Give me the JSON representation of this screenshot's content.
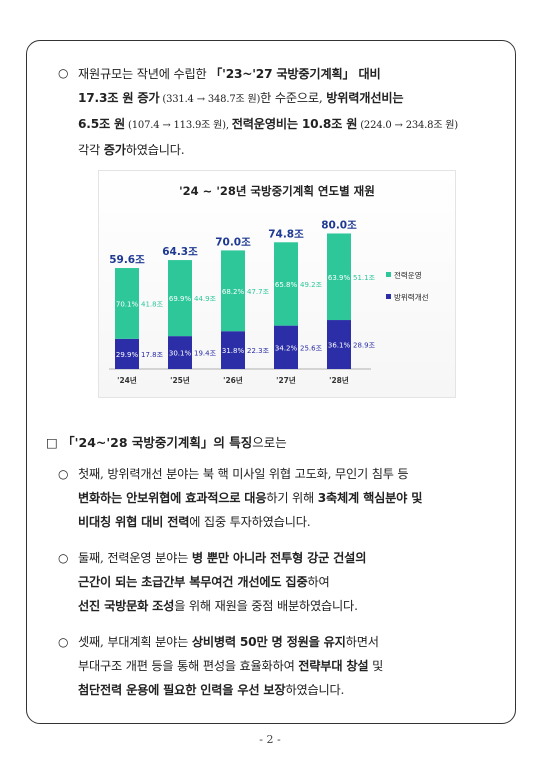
{
  "intro": {
    "bullet": "○",
    "line1_a": "재원규모는 작년에 수립한 ",
    "line1_b": "「'23~'27 국방중기계획」 대비",
    "line2_a": "17.3조 원 증가",
    "line2_b": " (331.4 → 348.7조 원)",
    "line2_c": "한 수준으로, ",
    "line2_d": "방위력개선비는",
    "line3_a": "6.5조 원",
    "line3_b": " (107.4 → 113.9조 원), ",
    "line3_c": "전력운영비는 10.8조 원",
    "line3_d": " (224.0 → 234.8조 원)",
    "line4_a": "각각 ",
    "line4_b": "증가",
    "line4_c": "하였습니다."
  },
  "chart_data": {
    "type": "bar",
    "title": "'24 ~ '28년 국방중기계획 연도별 재원",
    "categories": [
      "'24년",
      "'25년",
      "'26년",
      "'27년",
      "'28년"
    ],
    "totals": [
      59.6,
      64.3,
      70.0,
      74.8,
      80.0
    ],
    "total_labels": [
      "59.6조",
      "64.3조",
      "70.0조",
      "74.8조",
      "80.0조"
    ],
    "series": [
      {
        "name": "방위력개선",
        "values": [
          17.8,
          19.4,
          22.3,
          25.6,
          28.9
        ],
        "value_labels": [
          "17.8조",
          "19.4조",
          "22.3조",
          "25.6조",
          "28.9조"
        ],
        "pct_labels": [
          "29.9%",
          "30.1%",
          "31.8%",
          "34.2%",
          "36.1%"
        ],
        "color": "#2b2ea6"
      },
      {
        "name": "전력운영",
        "values": [
          41.8,
          44.9,
          47.7,
          49.2,
          51.1
        ],
        "value_labels": [
          "41.8조",
          "44.9조",
          "47.7조",
          "49.2조",
          "51.1조"
        ],
        "pct_labels": [
          "70.1%",
          "69.9%",
          "68.2%",
          "65.8%",
          "63.9%"
        ],
        "color": "#2ec79a"
      }
    ],
    "ylim": [
      0,
      85
    ],
    "grid": false,
    "legend": "right",
    "total_color": "#1f3a93"
  },
  "section": {
    "box": "□",
    "title_a": " 「'24~'28 국방중기계획」의 특징",
    "title_b": "으로는"
  },
  "items": [
    {
      "bullet": "○",
      "l1": "첫째, 방위력개선 분야는 북 핵 미사일 위협 고도화, 무인기 침투 등",
      "l2_a": "변화하는 안보위협에 효과적으로 대응",
      "l2_b": "하기 위해 ",
      "l2_c": "3축체계 핵심분야 및",
      "l3_a": "비대칭 위협 대비 전력",
      "l3_b": "에 집중 투자하였습니다."
    },
    {
      "bullet": "○",
      "l1_a": "둘째, 전력운영 분야는 ",
      "l1_b": "병 뿐만 아니라 전투형 강군 건설의",
      "l2_a": "근간이 되는 초급간부 복무여건 개선에도 집중",
      "l2_b": "하여",
      "l3_a": "선진 국방문화 조성",
      "l3_b": "을 위해 재원을 중점 배분하였습니다."
    },
    {
      "bullet": "○",
      "l1_a": "셋째, 부대계획 분야는 ",
      "l1_b": "상비병력 50만 명 정원을 유지",
      "l1_c": "하면서",
      "l2_a": "부대구조 개편 등을 통해 편성을 효율화하여 ",
      "l2_b": "전략부대 창설",
      "l2_c": " 및",
      "l3_a": "첨단전력 운용에 필요한 인력을 우선 보장",
      "l3_b": "하였습니다."
    }
  ],
  "footer": {
    "page": "- 2 -"
  }
}
